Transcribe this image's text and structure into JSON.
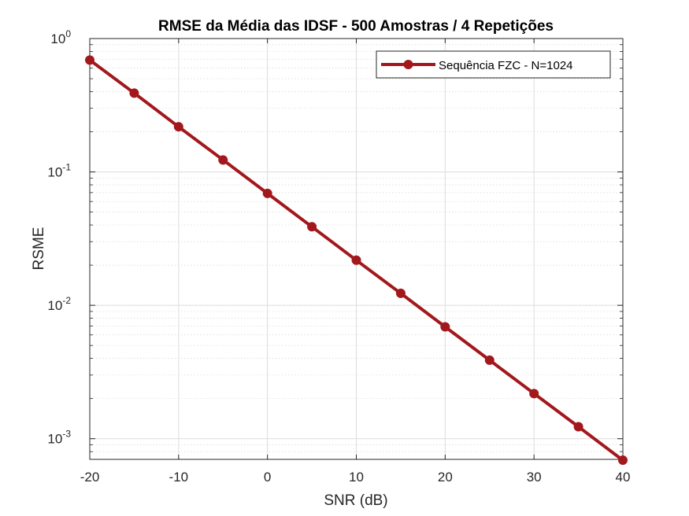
{
  "chart_data": {
    "type": "line",
    "title": "RMSE da Média das IDSF - 500 Amostras / 4 Repetições",
    "xlabel": "SNR (dB)",
    "ylabel": "RSME",
    "xlim": [
      -20,
      40
    ],
    "ylim": [
      0.0007,
      1
    ],
    "yscale": "log",
    "grid": true,
    "minor_grid": true,
    "x_ticks": [
      -20,
      -10,
      0,
      10,
      20,
      30,
      40
    ],
    "x_tick_labels": [
      "-20",
      "-10",
      "0",
      "10",
      "20",
      "30",
      "40"
    ],
    "y_ticks": [
      {
        "value": 1,
        "base": "10",
        "exp": "0"
      },
      {
        "value": 0.1,
        "base": "10",
        "exp": "-1"
      },
      {
        "value": 0.01,
        "base": "10",
        "exp": "-2"
      },
      {
        "value": 0.001,
        "base": "10",
        "exp": "-3"
      }
    ],
    "legend_position": "top-right",
    "series": [
      {
        "name": "Sequência FZC - N=1024",
        "color": "#a2181c",
        "marker": "circle",
        "x": [
          -20,
          -15,
          -10,
          -5,
          0,
          5,
          10,
          15,
          20,
          25,
          30,
          35,
          40
        ],
        "values": [
          0.69,
          0.39,
          0.218,
          0.123,
          0.069,
          0.0388,
          0.0218,
          0.0123,
          0.0069,
          0.00388,
          0.00218,
          0.00123,
          0.00069
        ]
      }
    ]
  }
}
